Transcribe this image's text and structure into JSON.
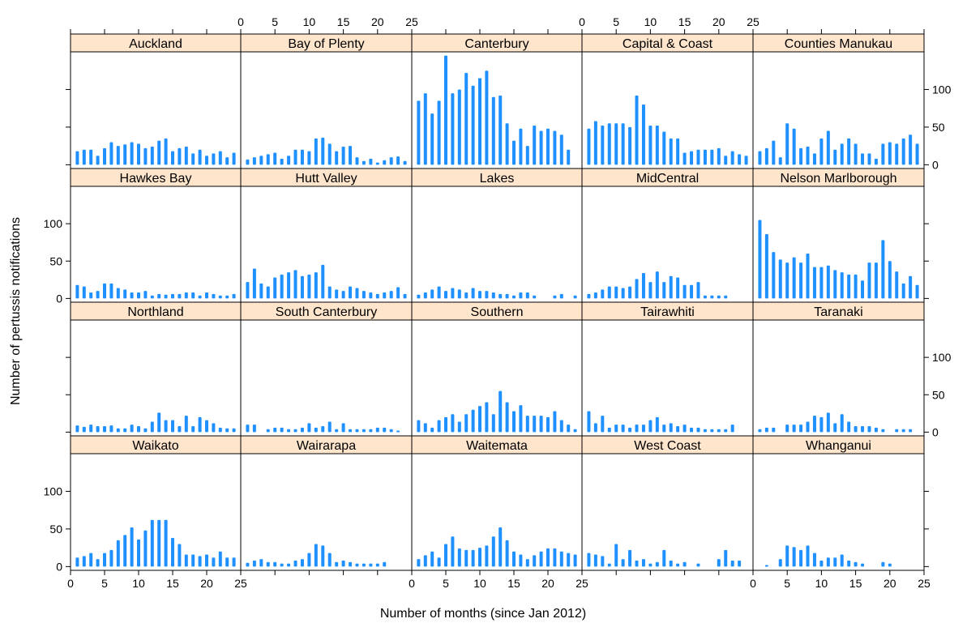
{
  "chart_data": {
    "type": "bar",
    "title": "",
    "xlabel": "Number of months (since Jan 2012)",
    "ylabel": "Number of pertussis notifications",
    "xlim": [
      0,
      25
    ],
    "ylim": [
      -5,
      150
    ],
    "x_ticks": [
      0,
      5,
      10,
      15,
      20,
      25
    ],
    "y_ticks": [
      0,
      50,
      100
    ],
    "bar_color": "#1e90ff",
    "strip_color": "#ffe5cc",
    "layout": {
      "columns": 5,
      "rows": 4
    },
    "panels": [
      {
        "name": "Auckland",
        "values": [
          18,
          20,
          20,
          12,
          22,
          30,
          25,
          27,
          30,
          28,
          22,
          24,
          32,
          35,
          18,
          22,
          24,
          15,
          20,
          12,
          15,
          18,
          10,
          16
        ]
      },
      {
        "name": "Bay of Plenty",
        "values": [
          7,
          10,
          12,
          14,
          16,
          8,
          12,
          20,
          20,
          18,
          35,
          36,
          28,
          18,
          24,
          25,
          10,
          5,
          8,
          3,
          6,
          10,
          11,
          5
        ]
      },
      {
        "name": "Canterbury",
        "values": [
          85,
          95,
          68,
          85,
          145,
          95,
          100,
          122,
          105,
          115,
          125,
          90,
          92,
          55,
          32,
          48,
          25,
          52,
          45,
          48,
          45,
          40,
          20
        ]
      },
      {
        "name": "Capital & Coast",
        "values": [
          48,
          58,
          52,
          55,
          55,
          55,
          50,
          92,
          80,
          52,
          52,
          44,
          35,
          35,
          16,
          18,
          20,
          20,
          20,
          22,
          12,
          18,
          14,
          12
        ]
      },
      {
        "name": "Counties Manukau",
        "values": [
          18,
          22,
          32,
          10,
          55,
          48,
          22,
          24,
          15,
          35,
          45,
          20,
          28,
          35,
          28,
          15,
          15,
          8,
          28,
          30,
          28,
          35,
          40,
          28
        ]
      },
      {
        "name": "Hawkes Bay",
        "values": [
          18,
          16,
          8,
          10,
          20,
          20,
          14,
          12,
          8,
          8,
          10,
          4,
          6,
          5,
          6,
          6,
          8,
          8,
          4,
          8,
          6,
          4,
          4,
          6
        ]
      },
      {
        "name": "Hutt Valley",
        "values": [
          22,
          40,
          20,
          16,
          28,
          32,
          35,
          38,
          30,
          32,
          35,
          45,
          16,
          12,
          10,
          16,
          14,
          10,
          8,
          6,
          8,
          10,
          15,
          6
        ]
      },
      {
        "name": "Lakes",
        "values": [
          5,
          8,
          12,
          16,
          10,
          14,
          12,
          8,
          14,
          10,
          10,
          8,
          6,
          6,
          4,
          8,
          8,
          4,
          null,
          null,
          4,
          6,
          null,
          4
        ]
      },
      {
        "name": "MidCentral",
        "values": [
          6,
          8,
          12,
          16,
          16,
          14,
          16,
          26,
          34,
          22,
          36,
          22,
          30,
          28,
          18,
          18,
          22,
          4,
          4,
          4,
          4
        ]
      },
      {
        "name": "Nelson Marlborough",
        "values": [
          105,
          86,
          62,
          52,
          48,
          55,
          48,
          60,
          42,
          42,
          44,
          38,
          35,
          32,
          32,
          24,
          48,
          48,
          78,
          50,
          36,
          20,
          30,
          18
        ]
      },
      {
        "name": "Northland",
        "values": [
          9,
          7,
          10,
          8,
          8,
          9,
          5,
          5,
          10,
          8,
          5,
          14,
          26,
          16,
          16,
          8,
          22,
          8,
          20,
          16,
          12,
          6,
          5,
          5
        ]
      },
      {
        "name": "South Canterbury",
        "values": [
          10,
          10,
          null,
          4,
          6,
          6,
          4,
          4,
          6,
          12,
          6,
          8,
          14,
          4,
          12,
          4,
          4,
          4,
          4,
          6,
          6,
          4,
          2
        ]
      },
      {
        "name": "Southern",
        "values": [
          16,
          12,
          6,
          16,
          20,
          24,
          14,
          24,
          30,
          35,
          40,
          24,
          55,
          40,
          28,
          36,
          22,
          22,
          22,
          20,
          28,
          16,
          10,
          4
        ]
      },
      {
        "name": "Tairawhiti",
        "values": [
          28,
          12,
          22,
          6,
          10,
          10,
          6,
          10,
          10,
          16,
          20,
          10,
          12,
          8,
          10,
          6,
          6,
          4,
          4,
          4,
          4,
          10
        ]
      },
      {
        "name": "Taranaki",
        "values": [
          4,
          6,
          6,
          null,
          10,
          10,
          10,
          14,
          22,
          20,
          26,
          12,
          24,
          14,
          8,
          8,
          8,
          6,
          4,
          null,
          4,
          4,
          4
        ]
      },
      {
        "name": "Waikato",
        "values": [
          12,
          14,
          18,
          10,
          18,
          22,
          35,
          42,
          52,
          36,
          48,
          62,
          62,
          62,
          38,
          30,
          16,
          16,
          14,
          16,
          12,
          20,
          12,
          12
        ]
      },
      {
        "name": "Wairarapa",
        "values": [
          5,
          8,
          10,
          6,
          6,
          4,
          4,
          8,
          10,
          18,
          30,
          28,
          18,
          6,
          8,
          6,
          4,
          4,
          4,
          4,
          6
        ]
      },
      {
        "name": "Waitemata",
        "values": [
          10,
          15,
          20,
          12,
          30,
          40,
          24,
          22,
          22,
          25,
          28,
          40,
          52,
          35,
          20,
          16,
          10,
          15,
          20,
          24,
          24,
          20,
          18,
          16
        ]
      },
      {
        "name": "West Coast",
        "values": [
          18,
          16,
          14,
          4,
          30,
          10,
          22,
          8,
          10,
          4,
          6,
          22,
          8,
          4,
          6,
          null,
          4,
          null,
          null,
          10,
          22,
          8,
          8
        ]
      },
      {
        "name": "Whanganui",
        "values": [
          null,
          2,
          null,
          10,
          28,
          26,
          22,
          28,
          18,
          8,
          12,
          12,
          16,
          8,
          6,
          4,
          null,
          null,
          6,
          4
        ]
      }
    ]
  }
}
